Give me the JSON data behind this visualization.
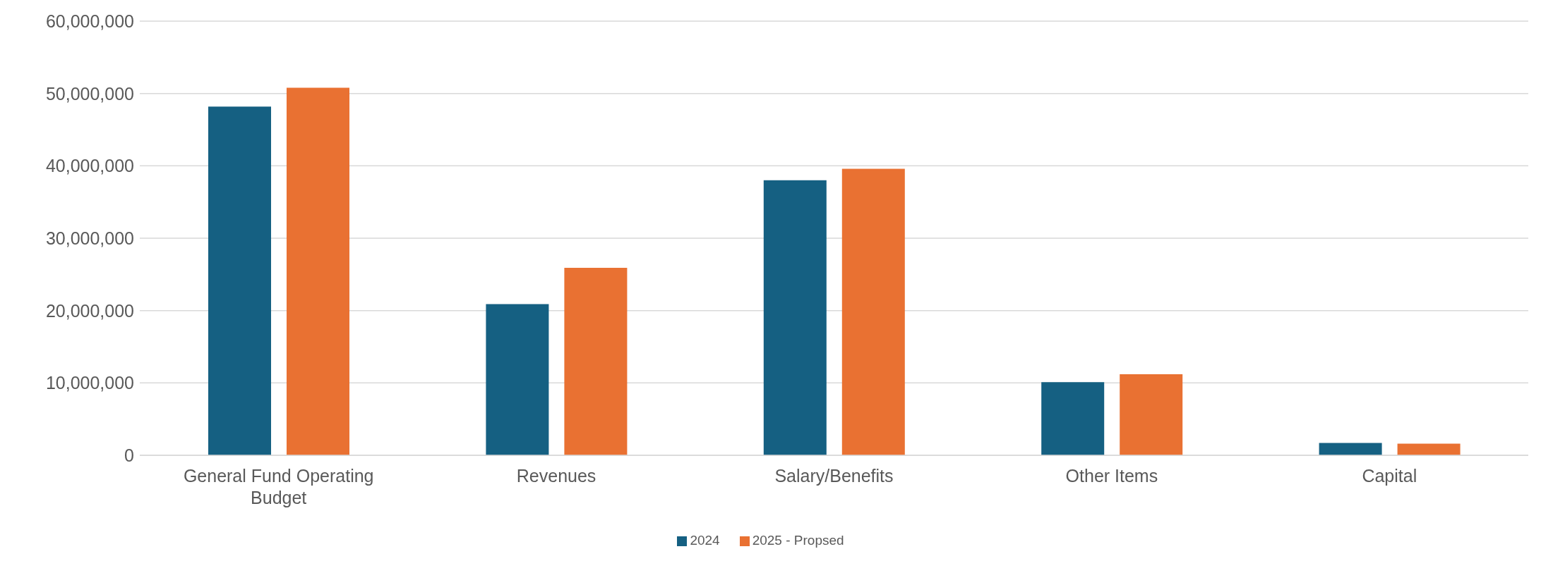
{
  "chart_data": {
    "type": "bar",
    "categories": [
      "General Fund Operating Budget",
      "Revenues",
      "Salary/Benefits",
      "Other Items",
      "Capital"
    ],
    "series": [
      {
        "name": "2024",
        "color": "#156082",
        "values": [
          48200000,
          20900000,
          38000000,
          10100000,
          1700000
        ]
      },
      {
        "name": "2025 - Propsed",
        "color": "#e97132",
        "values": [
          50800000,
          25900000,
          39600000,
          11200000,
          1600000
        ]
      }
    ],
    "ylim": [
      0,
      60000000
    ],
    "yticks": [
      0,
      {
        "value": 10000000,
        "label": "10,000,000"
      },
      {
        "value": 20000000,
        "label": "20,000,000"
      },
      {
        "value": 30000000,
        "label": "30,000,000"
      },
      {
        "value": 40000000,
        "label": "40,000,000"
      },
      {
        "value": 50000000,
        "label": "50,000,000"
      },
      {
        "value": 60000000,
        "label": "60,000,000"
      }
    ],
    "grid": "y",
    "legend": "bottom"
  }
}
